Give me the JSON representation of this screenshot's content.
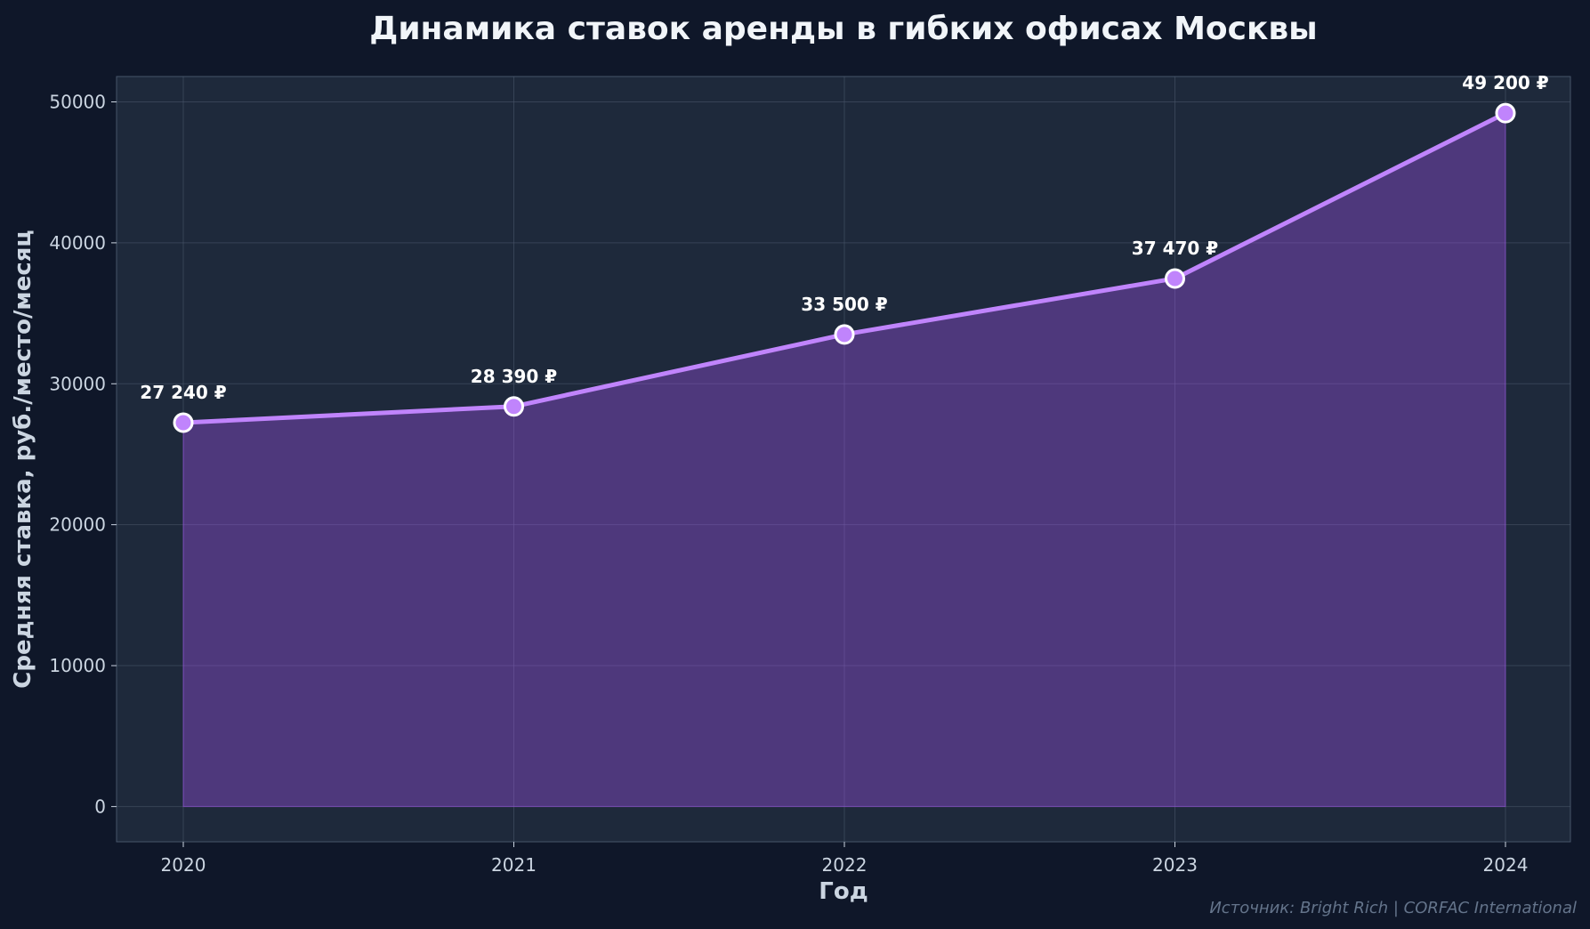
{
  "chart_data": {
    "type": "area",
    "title": "Динамика ставок аренды в гибких офисах Москвы",
    "xlabel": "Год",
    "ylabel": "Средняя ставка, руб./место/месяц",
    "x": [
      "2020",
      "2021",
      "2022",
      "2023",
      "2024"
    ],
    "series": [
      {
        "values": [
          27240,
          28390,
          33500,
          37470,
          49200
        ],
        "data_labels": [
          "27 240 ₽",
          "28 390 ₽",
          "33 500 ₽",
          "37 470 ₽",
          "49 200 ₽"
        ]
      }
    ],
    "ylim": [
      -2500,
      51800
    ],
    "yticks": [
      0,
      10000,
      20000,
      30000,
      40000,
      50000
    ],
    "ytick_labels": [
      "0",
      "10000",
      "20000",
      "30000",
      "40000",
      "50000"
    ],
    "grid": true,
    "source": "Источник: Bright Rich | CORFAC International",
    "colors": {
      "page_background": "#0f1729",
      "plot_background": "#1e293b",
      "line": "#c084fc",
      "fill": "#a855f7",
      "marker_fill": "#c084fc",
      "marker_edge": "#ffffff",
      "grid": "#475569",
      "text": "#cbd5e1",
      "title": "#f1f5f9",
      "source": "#64748b"
    }
  }
}
